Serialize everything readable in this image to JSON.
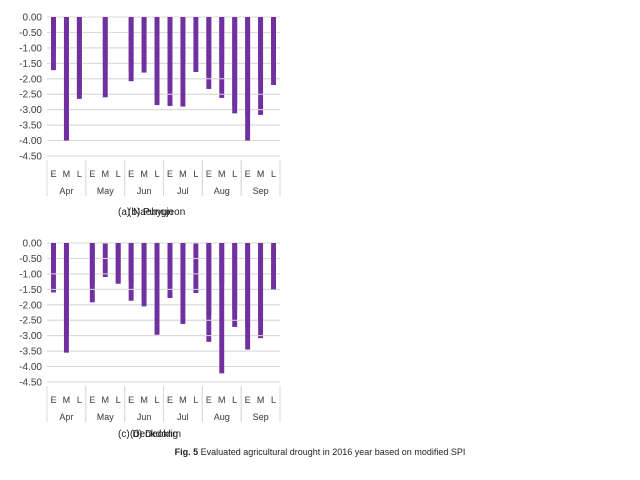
{
  "figure": {
    "label": "Fig. 5",
    "text": "Evaluated agricultural drought in 2016 year based on modified SPI"
  },
  "style": {
    "bar_color": "#7030a0",
    "grid_color": "#d9d9d9",
    "axis_text_color": "#595959"
  },
  "chart_data": [
    {
      "type": "bar",
      "caption": "(a) Naehyun",
      "months": [
        "Apr",
        "May",
        "Jun",
        "Jul",
        "Aug",
        "Sep"
      ],
      "subcategories": [
        "E",
        "M",
        "L"
      ],
      "yticks": [
        "0.00",
        "-0.50",
        "-1.00",
        "-1.50",
        "-2.00",
        "-2.50",
        "-3.00",
        "-3.50",
        "-4.00",
        "-4.50"
      ],
      "ylim": [
        -4.5,
        0
      ],
      "grid": true,
      "values": [
        -1.08,
        -4.0,
        -2.52,
        null,
        -1.62,
        null,
        -1.75,
        -1.58,
        -2.85,
        -2.88,
        -1.5,
        null,
        -2.33,
        -2.62,
        -2.9,
        -3.2,
        -3.17,
        -1.5
      ]
    },
    {
      "type": "bar",
      "caption": "(b) Pungjeon",
      "months": [
        "Apr",
        "May",
        "Jun",
        "Jul",
        "Aug",
        "Sep"
      ],
      "subcategories": [
        "E",
        "M",
        "L"
      ],
      "yticks": [
        "0.00",
        "-0.50",
        "-1.00",
        "-1.50",
        "-2.00",
        "-2.50",
        "-3.00",
        "-3.50",
        "-4.00",
        "-4.50"
      ],
      "ylim": [
        -4.5,
        0
      ],
      "grid": true,
      "values": [
        -1.72,
        -4.0,
        -2.65,
        null,
        -2.6,
        null,
        -2.08,
        -1.8,
        -2.57,
        -2.25,
        -2.9,
        -1.78,
        -1.92,
        -1.55,
        -3.12,
        -4.0,
        -2.05,
        -2.2
      ]
    },
    {
      "type": "bar",
      "caption": "(c) Deokdong",
      "months": [
        "Apr",
        "May",
        "Jun",
        "Jul",
        "Aug",
        "Sep"
      ],
      "subcategories": [
        "E",
        "M",
        "L"
      ],
      "yticks": [
        "0.00",
        "-0.50",
        "-1.00",
        "-1.50",
        "-2.00",
        "-2.50",
        "-3.00",
        "-3.50",
        "-4.00",
        "-4.50"
      ],
      "ylim": [
        -4.5,
        0
      ],
      "grid": true,
      "values": [
        -1.6,
        -2.95,
        null,
        -1.92,
        -1.1,
        -1.32,
        -1.87,
        -1.8,
        -1.02,
        -1.78,
        -1.6,
        -1.62,
        -3.2,
        -1.35,
        -2.72,
        -2.75,
        -3.08,
        null
      ]
    },
    {
      "type": "bar",
      "caption": "(d) Deoklim",
      "months": [
        "Apr",
        "May",
        "Jun",
        "Jul",
        "Aug",
        "Sep"
      ],
      "subcategories": [
        "E",
        "M",
        "L"
      ],
      "yticks": [
        "0.00",
        "-0.50",
        "-1.00",
        "-1.50",
        "-2.00",
        "-2.50",
        "-3.00",
        "-3.50",
        "-4.00",
        "-4.50"
      ],
      "ylim": [
        -4.5,
        0
      ],
      "grid": true,
      "values": [
        -0.9,
        -3.55,
        null,
        -1.35,
        null,
        -1.28,
        -1.25,
        -2.05,
        -2.97,
        -1.1,
        -2.62,
        null,
        -2.33,
        -4.22,
        -2.15,
        -3.45,
        -2.55,
        -1.5
      ]
    }
  ]
}
